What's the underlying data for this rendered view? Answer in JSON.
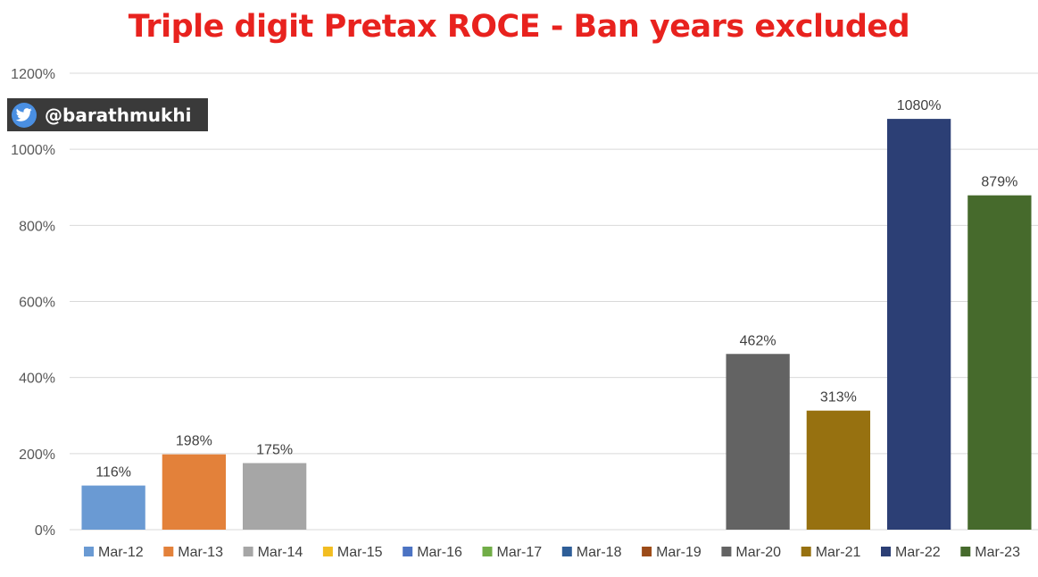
{
  "chart_data": {
    "type": "bar",
    "title": "Triple digit Pretax ROCE - Ban years excluded",
    "xlabel": "",
    "ylabel": "",
    "ylim": [
      0,
      1200
    ],
    "ytick_step": 200,
    "yticks": [
      "0%",
      "200%",
      "400%",
      "600%",
      "800%",
      "1000%",
      "1200%"
    ],
    "grid": "horizontal",
    "legend_position": "bottom",
    "categories": [
      "Mar-12",
      "Mar-13",
      "Mar-14",
      "Mar-15",
      "Mar-16",
      "Mar-17",
      "Mar-18",
      "Mar-19",
      "Mar-20",
      "Mar-21",
      "Mar-22",
      "Mar-23"
    ],
    "values": [
      116,
      198,
      175,
      null,
      null,
      null,
      null,
      null,
      462,
      313,
      1080,
      879
    ],
    "value_labels": [
      "116%",
      "198%",
      "175%",
      "",
      "",
      "",
      "",
      "",
      "462%",
      "313%",
      "1080%",
      "879%"
    ],
    "colors": [
      "#6a9ad3",
      "#e3813a",
      "#a6a6a6",
      "#f2bd21",
      "#4c73c3",
      "#71ad47",
      "#2e5e98",
      "#9c4b19",
      "#636363",
      "#977110",
      "#2c3f75",
      "#466a2c"
    ]
  },
  "watermark": {
    "handle": "@barathmukhi",
    "icon": "twitter-bird-icon"
  }
}
